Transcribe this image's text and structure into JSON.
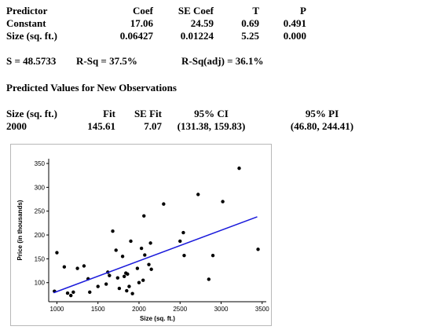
{
  "coef_table": {
    "headers": [
      "Predictor",
      "Coef",
      "SE Coef",
      "T",
      "P"
    ],
    "rows": [
      [
        "Constant",
        "17.06",
        "24.59",
        "0.69",
        "0.491"
      ],
      [
        "Size (sq. ft.)",
        "0.06427",
        "0.01224",
        "5.25",
        "0.000"
      ]
    ]
  },
  "summary": {
    "s": "S = 48.5733",
    "rsq": "R-Sq = 37.5%",
    "rsq_adj": "R-Sq(adj) = 36.1%"
  },
  "predicted": {
    "title": "Predicted Values for New Observations",
    "headers": [
      "Size (sq. ft.)",
      "Fit",
      "SE Fit",
      "95% CI",
      "95% PI"
    ],
    "row": [
      "2000",
      "145.61",
      "7.07",
      "(131.38, 159.83)",
      "(46.80, 244.41)"
    ]
  },
  "chart_data": {
    "type": "scatter",
    "title": "",
    "xlabel": "Size (sq. ft.)",
    "ylabel": "Price (in thousands)",
    "xlim": [
      900,
      3550
    ],
    "ylim": [
      60,
      360
    ],
    "xticks": [
      1000,
      1500,
      2000,
      2500,
      3000,
      3500
    ],
    "yticks": [
      100,
      150,
      200,
      250,
      300,
      350
    ],
    "grid": false,
    "point_color": "#000000",
    "line_color": "#1a1adb",
    "fit_line": {
      "intercept": 17.06,
      "slope": 0.06427,
      "x_range": [
        960,
        3440
      ]
    },
    "points": [
      {
        "x": 970,
        "y": 82
      },
      {
        "x": 1000,
        "y": 163
      },
      {
        "x": 1090,
        "y": 133
      },
      {
        "x": 1130,
        "y": 78
      },
      {
        "x": 1170,
        "y": 73
      },
      {
        "x": 1200,
        "y": 80
      },
      {
        "x": 1250,
        "y": 130
      },
      {
        "x": 1330,
        "y": 135
      },
      {
        "x": 1380,
        "y": 108
      },
      {
        "x": 1400,
        "y": 80
      },
      {
        "x": 1500,
        "y": 92
      },
      {
        "x": 1600,
        "y": 97
      },
      {
        "x": 1620,
        "y": 122
      },
      {
        "x": 1640,
        "y": 115
      },
      {
        "x": 1680,
        "y": 208
      },
      {
        "x": 1720,
        "y": 168
      },
      {
        "x": 1740,
        "y": 110
      },
      {
        "x": 1760,
        "y": 88
      },
      {
        "x": 1800,
        "y": 155
      },
      {
        "x": 1820,
        "y": 113
      },
      {
        "x": 1840,
        "y": 120
      },
      {
        "x": 1850,
        "y": 83
      },
      {
        "x": 1860,
        "y": 118
      },
      {
        "x": 1880,
        "y": 92
      },
      {
        "x": 1900,
        "y": 187
      },
      {
        "x": 1920,
        "y": 77
      },
      {
        "x": 1980,
        "y": 130
      },
      {
        "x": 2000,
        "y": 100
      },
      {
        "x": 2030,
        "y": 172
      },
      {
        "x": 2050,
        "y": 105
      },
      {
        "x": 2060,
        "y": 240
      },
      {
        "x": 2070,
        "y": 158
      },
      {
        "x": 2120,
        "y": 138
      },
      {
        "x": 2140,
        "y": 183
      },
      {
        "x": 2150,
        "y": 128
      },
      {
        "x": 2300,
        "y": 265
      },
      {
        "x": 2500,
        "y": 187
      },
      {
        "x": 2540,
        "y": 205
      },
      {
        "x": 2550,
        "y": 157
      },
      {
        "x": 2720,
        "y": 285
      },
      {
        "x": 2850,
        "y": 107
      },
      {
        "x": 2900,
        "y": 157
      },
      {
        "x": 3020,
        "y": 270
      },
      {
        "x": 3220,
        "y": 340
      },
      {
        "x": 3450,
        "y": 170
      }
    ]
  }
}
